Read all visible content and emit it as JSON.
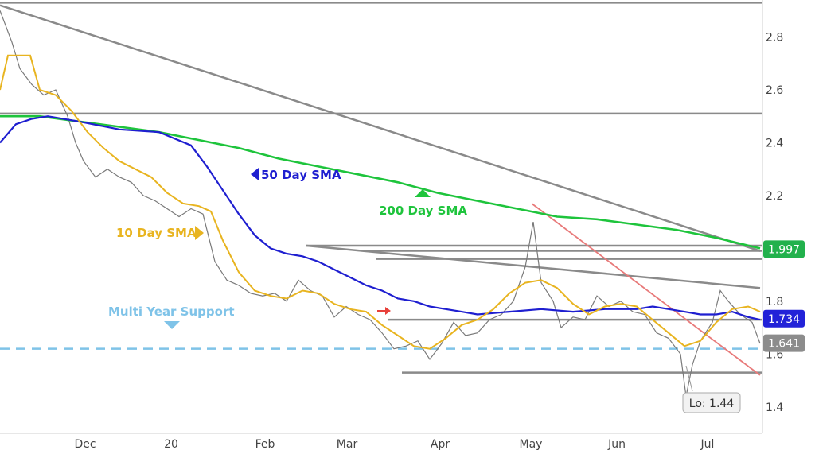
{
  "chart_data": {
    "type": "line",
    "title": "",
    "xlabel": "",
    "ylabel": "",
    "ylim": [
      1.3,
      2.94
    ],
    "x_tick_labels": [
      "Dec",
      "20",
      "Feb",
      "Mar",
      "Apr",
      "May",
      "Jun",
      "Jul"
    ],
    "y_tick_labels": [
      "2.8",
      "2.6",
      "2.4",
      "2.2",
      "1.8",
      "1.6",
      "1.4"
    ],
    "y_ticks": [
      2.8,
      2.6,
      2.4,
      2.2,
      1.8,
      1.6,
      1.4
    ],
    "grid": false,
    "colors": {
      "price": "#7a7a7a",
      "sma10": "#e8b420",
      "sma50": "#1f1fd0",
      "sma200": "#1ec43c",
      "trendline": "#8a8a8a",
      "support": "#7fc3e8",
      "downtrend": "#e87a7a",
      "badge_green": "#22b14c",
      "badge_blue": "#2222d8",
      "badge_gray": "#8c8c8c"
    },
    "series": [
      {
        "name": "10 Day SMA",
        "points": [
          [
            0,
            2.6
          ],
          [
            10,
            2.73
          ],
          [
            38,
            2.73
          ],
          [
            50,
            2.6
          ],
          [
            70,
            2.58
          ],
          [
            90,
            2.52
          ],
          [
            110,
            2.44
          ],
          [
            130,
            2.38
          ],
          [
            150,
            2.33
          ],
          [
            170,
            2.3
          ],
          [
            190,
            2.27
          ],
          [
            210,
            2.21
          ],
          [
            230,
            2.17
          ],
          [
            250,
            2.16
          ],
          [
            265,
            2.14
          ],
          [
            280,
            2.03
          ],
          [
            300,
            1.91
          ],
          [
            320,
            1.84
          ],
          [
            340,
            1.82
          ],
          [
            360,
            1.81
          ],
          [
            380,
            1.84
          ],
          [
            400,
            1.83
          ],
          [
            420,
            1.79
          ],
          [
            440,
            1.77
          ],
          [
            460,
            1.76
          ],
          [
            480,
            1.71
          ],
          [
            500,
            1.67
          ],
          [
            520,
            1.63
          ],
          [
            540,
            1.62
          ],
          [
            560,
            1.66
          ],
          [
            580,
            1.71
          ],
          [
            600,
            1.73
          ],
          [
            620,
            1.77
          ],
          [
            640,
            1.83
          ],
          [
            660,
            1.87
          ],
          [
            680,
            1.88
          ],
          [
            700,
            1.85
          ],
          [
            720,
            1.79
          ],
          [
            740,
            1.75
          ],
          [
            760,
            1.78
          ],
          [
            780,
            1.79
          ],
          [
            800,
            1.78
          ],
          [
            820,
            1.73
          ],
          [
            840,
            1.68
          ],
          [
            860,
            1.63
          ],
          [
            880,
            1.65
          ],
          [
            900,
            1.72
          ],
          [
            920,
            1.77
          ],
          [
            940,
            1.78
          ],
          [
            955,
            1.76
          ]
        ]
      },
      {
        "name": "50 Day SMA",
        "points": [
          [
            0,
            2.4
          ],
          [
            20,
            2.47
          ],
          [
            40,
            2.49
          ],
          [
            60,
            2.5
          ],
          [
            100,
            2.48
          ],
          [
            150,
            2.45
          ],
          [
            200,
            2.44
          ],
          [
            240,
            2.39
          ],
          [
            260,
            2.31
          ],
          [
            280,
            2.22
          ],
          [
            300,
            2.13
          ],
          [
            320,
            2.05
          ],
          [
            340,
            2
          ],
          [
            360,
            1.98
          ],
          [
            380,
            1.97
          ],
          [
            400,
            1.95
          ],
          [
            420,
            1.92
          ],
          [
            440,
            1.89
          ],
          [
            460,
            1.86
          ],
          [
            480,
            1.84
          ],
          [
            500,
            1.81
          ],
          [
            520,
            1.8
          ],
          [
            540,
            1.78
          ],
          [
            560,
            1.77
          ],
          [
            580,
            1.76
          ],
          [
            600,
            1.75
          ],
          [
            640,
            1.76
          ],
          [
            680,
            1.77
          ],
          [
            720,
            1.76
          ],
          [
            760,
            1.77
          ],
          [
            800,
            1.77
          ],
          [
            820,
            1.78
          ],
          [
            840,
            1.77
          ],
          [
            860,
            1.76
          ],
          [
            880,
            1.75
          ],
          [
            900,
            1.75
          ],
          [
            920,
            1.76
          ],
          [
            940,
            1.74
          ],
          [
            955,
            1.73
          ]
        ]
      },
      {
        "name": "200 Day SMA",
        "points": [
          [
            0,
            2.5
          ],
          [
            50,
            2.5
          ],
          [
            100,
            2.48
          ],
          [
            150,
            2.46
          ],
          [
            200,
            2.44
          ],
          [
            250,
            2.41
          ],
          [
            300,
            2.38
          ],
          [
            350,
            2.34
          ],
          [
            400,
            2.31
          ],
          [
            450,
            2.28
          ],
          [
            500,
            2.25
          ],
          [
            550,
            2.21
          ],
          [
            600,
            2.18
          ],
          [
            650,
            2.15
          ],
          [
            700,
            2.12
          ],
          [
            750,
            2.11
          ],
          [
            800,
            2.09
          ],
          [
            850,
            2.07
          ],
          [
            900,
            2.04
          ],
          [
            955,
            2.0
          ]
        ]
      },
      {
        "name": "price",
        "points": [
          [
            0,
            2.9
          ],
          [
            15,
            2.78
          ],
          [
            25,
            2.68
          ],
          [
            40,
            2.62
          ],
          [
            55,
            2.58
          ],
          [
            70,
            2.6
          ],
          [
            85,
            2.5
          ],
          [
            95,
            2.4
          ],
          [
            105,
            2.33
          ],
          [
            120,
            2.27
          ],
          [
            135,
            2.3
          ],
          [
            150,
            2.27
          ],
          [
            165,
            2.25
          ],
          [
            180,
            2.2
          ],
          [
            195,
            2.18
          ],
          [
            210,
            2.15
          ],
          [
            225,
            2.12
          ],
          [
            240,
            2.15
          ],
          [
            255,
            2.13
          ],
          [
            270,
            1.95
          ],
          [
            285,
            1.88
          ],
          [
            300,
            1.86
          ],
          [
            315,
            1.83
          ],
          [
            330,
            1.82
          ],
          [
            345,
            1.83
          ],
          [
            360,
            1.8
          ],
          [
            375,
            1.88
          ],
          [
            390,
            1.84
          ],
          [
            405,
            1.82
          ],
          [
            420,
            1.74
          ],
          [
            435,
            1.78
          ],
          [
            450,
            1.75
          ],
          [
            465,
            1.73
          ],
          [
            480,
            1.68
          ],
          [
            495,
            1.62
          ],
          [
            510,
            1.63
          ],
          [
            525,
            1.65
          ],
          [
            540,
            1.58
          ],
          [
            555,
            1.64
          ],
          [
            570,
            1.72
          ],
          [
            585,
            1.67
          ],
          [
            600,
            1.68
          ],
          [
            615,
            1.73
          ],
          [
            630,
            1.75
          ],
          [
            645,
            1.8
          ],
          [
            660,
            1.93
          ],
          [
            670,
            2.1
          ],
          [
            680,
            1.87
          ],
          [
            695,
            1.8
          ],
          [
            705,
            1.7
          ],
          [
            720,
            1.74
          ],
          [
            735,
            1.73
          ],
          [
            750,
            1.82
          ],
          [
            765,
            1.78
          ],
          [
            780,
            1.8
          ],
          [
            795,
            1.76
          ],
          [
            810,
            1.75
          ],
          [
            825,
            1.68
          ],
          [
            840,
            1.66
          ],
          [
            855,
            1.6
          ],
          [
            862,
            1.44
          ],
          [
            870,
            1.56
          ],
          [
            880,
            1.65
          ],
          [
            895,
            1.72
          ],
          [
            905,
            1.84
          ],
          [
            915,
            1.8
          ],
          [
            930,
            1.75
          ],
          [
            945,
            1.72
          ],
          [
            955,
            1.64
          ]
        ]
      }
    ],
    "levels": {
      "support": 1.62,
      "top_line": 2.93,
      "resistance": 2.51,
      "box1_top": 2.01,
      "box1_mid": 1.99,
      "box2_top": 1.96,
      "box2_bottom": 1.73,
      "base": 1.53
    },
    "trendlines": [
      {
        "name": "major-downtrend",
        "from": [
          0,
          2.92
        ],
        "to": [
          955,
          1.99
        ]
      },
      {
        "name": "secondary-downtrend",
        "from": [
          385,
          2.01
        ],
        "to": [
          955,
          1.85
        ]
      },
      {
        "name": "red-downtrend",
        "from": [
          668,
          2.17
        ],
        "to": [
          955,
          1.52
        ]
      }
    ],
    "annotations": {
      "sma50_label": "50 Day SMA",
      "sma200_label": "200 Day SMA",
      "sma10_label": "10 Day SMA",
      "support_label": "Multi Year Support",
      "low_label": "Lo: 1.44"
    },
    "price_badges": {
      "sma200": "1.997",
      "sma50": "1.734",
      "last": "1.641"
    }
  }
}
